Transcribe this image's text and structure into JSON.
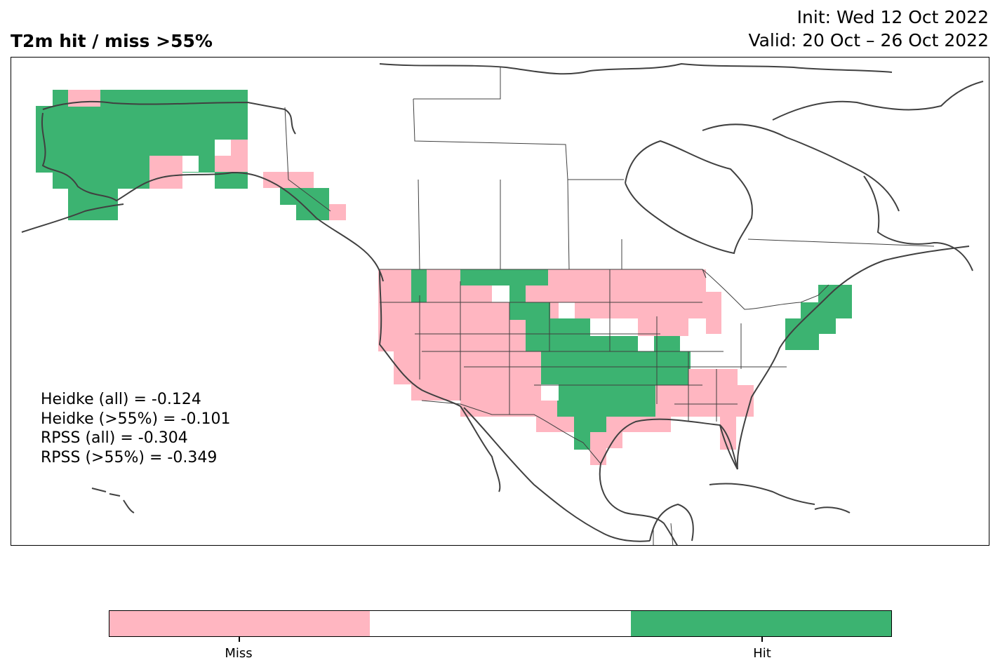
{
  "title": "T2m hit / miss  >55%",
  "init": "Init: Wed 12 Oct 2022",
  "valid": "Valid: 20 Oct – 26 Oct 2022",
  "stats": [
    "Heidke (all) = -0.124",
    "Heidke (>55%) = -0.101",
    "RPSS (all) = -0.304",
    "RPSS (>55%) = -0.349"
  ],
  "colorbar": {
    "segments": [
      {
        "name": "miss",
        "color": "#ffb6c1"
      },
      {
        "name": "neutral",
        "color": "#ffffff"
      },
      {
        "name": "hit",
        "color": "#3cb371"
      }
    ],
    "labels": {
      "miss": "Miss",
      "hit": "Hit"
    }
  },
  "colors": {
    "miss": "#ffb6c1",
    "hit": "#3cb371",
    "coastline": "#404040",
    "border": "#000000"
  }
}
